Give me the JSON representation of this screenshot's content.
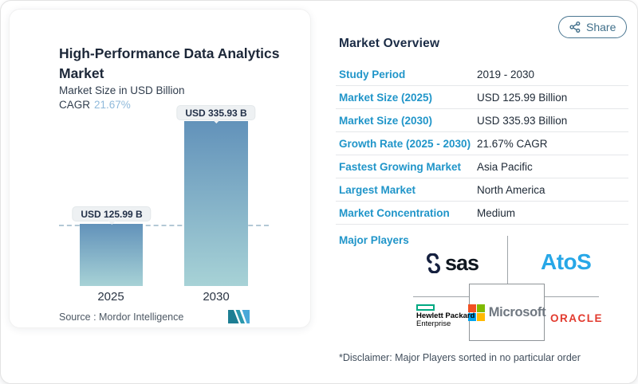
{
  "chart_card": {
    "title": "High-Performance Data Analytics Market",
    "subtitle": "Market Size in USD Billion",
    "cagr_label": "CAGR",
    "cagr_value": "21.67%",
    "source_text": "Source :  Mordor Intelligence"
  },
  "chart_data": {
    "type": "bar",
    "title": "High-Performance Data Analytics Market",
    "ylabel": "Market Size in USD Billion",
    "categories": [
      "2025",
      "2030"
    ],
    "values": [
      125.99,
      335.93
    ],
    "point_labels": [
      "USD 125.99 B",
      "USD 335.93 B"
    ],
    "cagr_percent": 21.67,
    "dashed_reference_line_at": 125.99,
    "bar_gradient": [
      "#6292ba",
      "#a7d2d6"
    ],
    "grid": false,
    "legend": false
  },
  "share": {
    "label": "Share"
  },
  "overview": {
    "heading": "Market Overview",
    "rows": [
      {
        "label": "Study Period",
        "value": "2019 - 2030"
      },
      {
        "label": "Market Size (2025)",
        "value": "USD 125.99 Billion"
      },
      {
        "label": "Market Size (2030)",
        "value": "USD 335.93 Billion"
      },
      {
        "label": "Growth Rate (2025 - 2030)",
        "value": "21.67% CAGR"
      },
      {
        "label": "Fastest Growing Market",
        "value": "Asia Pacific"
      },
      {
        "label": "Largest Market",
        "value": "North America"
      },
      {
        "label": "Market Concentration",
        "value": "Medium"
      }
    ]
  },
  "major_players": {
    "label": "Major Players",
    "players": [
      "SAS",
      "Atos",
      "Hewlett Packard Enterprise",
      "Microsoft",
      "Oracle"
    ],
    "logos": {
      "sas": "sas",
      "atos": "AtoS",
      "hpe_line1": "Hewlett Packard",
      "hpe_line2": "Enterprise",
      "microsoft": "Microsoft",
      "oracle": "ORACLE"
    },
    "disclaimer": "*Disclaimer: Major Players sorted in no particular order"
  },
  "icons": {
    "share": "share-network-icon",
    "sas_swirl": "sas-swirl-icon",
    "microsoft_squares": "microsoft-squares-icon",
    "hpe_rect": "hpe-green-box-icon",
    "mordor": "mordor-intelligence-logo"
  },
  "colors": {
    "accent_label_blue": "#2095c9",
    "heading_navy": "#1a2b45",
    "bar_top": "#6292ba",
    "bar_bottom": "#a7d2d6",
    "cagr_light_blue": "#90badb",
    "share_steel_blue": "#44718c",
    "atos_blue": "#27a7e7",
    "oracle_red": "#e23a2e",
    "hpe_green": "#00a982",
    "ms_red": "#f25022",
    "ms_green": "#7fba00",
    "ms_blue": "#00a4ef",
    "ms_yellow": "#ffb900",
    "connector_gray": "#9fa5a9",
    "dashed_line": "#b3c8d5"
  }
}
